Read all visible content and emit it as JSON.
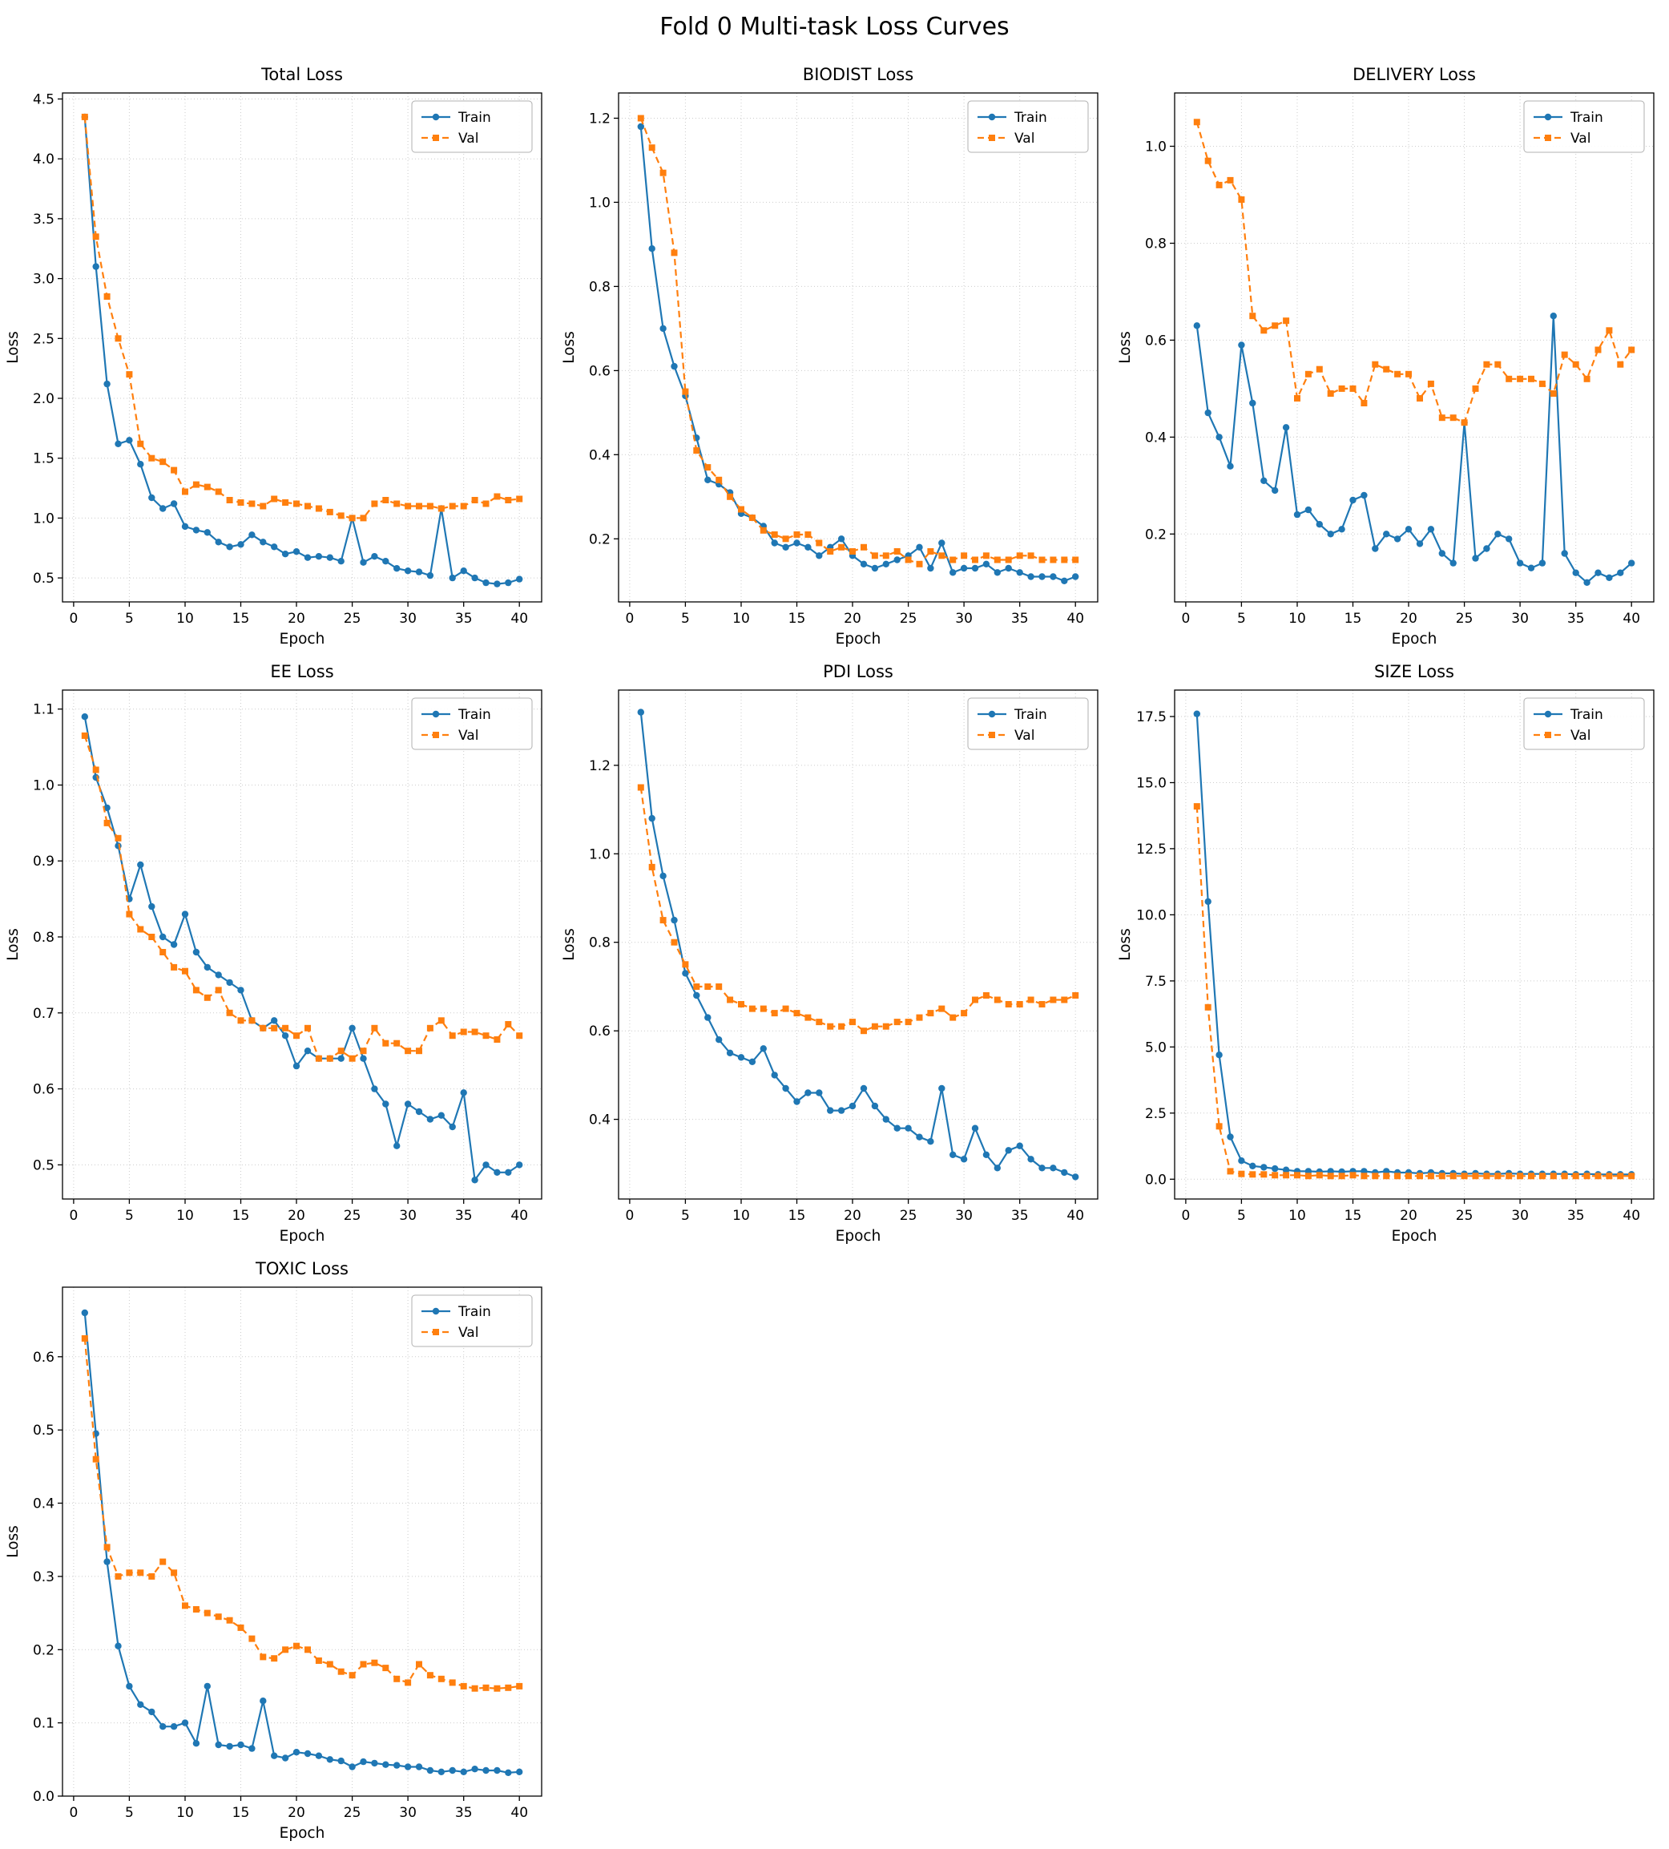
{
  "figure": {
    "title": "Fold 0 Multi-task Loss Curves"
  },
  "legend": {
    "train": "Train",
    "val": "Val"
  },
  "colors": {
    "train": "#1f77b4",
    "val": "#ff7f0e"
  },
  "axes": {
    "xlabel": "Epoch",
    "ylabel": "Loss",
    "xticks": [
      0,
      5,
      10,
      15,
      20,
      25,
      30,
      35,
      40
    ],
    "xlim": [
      -1,
      42
    ]
  },
  "epochs": [
    1,
    2,
    3,
    4,
    5,
    6,
    7,
    8,
    9,
    10,
    11,
    12,
    13,
    14,
    15,
    16,
    17,
    18,
    19,
    20,
    21,
    22,
    23,
    24,
    25,
    26,
    27,
    28,
    29,
    30,
    31,
    32,
    33,
    34,
    35,
    36,
    37,
    38,
    39,
    40
  ],
  "chart_data": [
    {
      "type": "line",
      "title": "Total Loss",
      "xlabel": "Epoch",
      "ylabel": "Loss",
      "ylim": [
        0.3,
        4.55
      ],
      "yticks": [
        0.5,
        1.0,
        1.5,
        2.0,
        2.5,
        3.0,
        3.5,
        4.0,
        4.5
      ],
      "series": [
        {
          "name": "Train",
          "values": [
            4.35,
            3.1,
            2.12,
            1.62,
            1.65,
            1.45,
            1.17,
            1.08,
            1.12,
            0.93,
            0.9,
            0.88,
            0.8,
            0.76,
            0.78,
            0.86,
            0.8,
            0.76,
            0.7,
            0.72,
            0.67,
            0.68,
            0.67,
            0.64,
            1.0,
            0.63,
            0.68,
            0.64,
            0.58,
            0.56,
            0.55,
            0.52,
            1.08,
            0.5,
            0.56,
            0.5,
            0.46,
            0.45,
            0.46,
            0.49
          ]
        },
        {
          "name": "Val",
          "values": [
            4.35,
            3.35,
            2.85,
            2.5,
            2.2,
            1.62,
            1.5,
            1.47,
            1.4,
            1.22,
            1.28,
            1.26,
            1.22,
            1.15,
            1.13,
            1.12,
            1.1,
            1.16,
            1.13,
            1.12,
            1.1,
            1.08,
            1.05,
            1.02,
            1.0,
            1.0,
            1.12,
            1.15,
            1.12,
            1.1,
            1.1,
            1.1,
            1.08,
            1.1,
            1.1,
            1.15,
            1.12,
            1.18,
            1.15,
            1.16
          ]
        }
      ]
    },
    {
      "type": "line",
      "title": "BIODIST Loss",
      "xlabel": "Epoch",
      "ylabel": "Loss",
      "ylim": [
        0.05,
        1.26
      ],
      "yticks": [
        0.2,
        0.4,
        0.6,
        0.8,
        1.0,
        1.2
      ],
      "series": [
        {
          "name": "Train",
          "values": [
            1.18,
            0.89,
            0.7,
            0.61,
            0.54,
            0.44,
            0.34,
            0.33,
            0.31,
            0.26,
            0.25,
            0.23,
            0.19,
            0.18,
            0.19,
            0.18,
            0.16,
            0.18,
            0.2,
            0.16,
            0.14,
            0.13,
            0.14,
            0.15,
            0.16,
            0.18,
            0.13,
            0.19,
            0.12,
            0.13,
            0.13,
            0.14,
            0.12,
            0.13,
            0.12,
            0.11,
            0.11,
            0.11,
            0.1,
            0.11
          ]
        },
        {
          "name": "Val",
          "values": [
            1.2,
            1.13,
            1.07,
            0.88,
            0.55,
            0.41,
            0.37,
            0.34,
            0.3,
            0.27,
            0.25,
            0.22,
            0.21,
            0.2,
            0.21,
            0.21,
            0.19,
            0.17,
            0.18,
            0.17,
            0.18,
            0.16,
            0.16,
            0.17,
            0.15,
            0.14,
            0.17,
            0.16,
            0.15,
            0.16,
            0.15,
            0.16,
            0.15,
            0.15,
            0.16,
            0.16,
            0.15,
            0.15,
            0.15,
            0.15
          ]
        }
      ]
    },
    {
      "type": "line",
      "title": "DELIVERY Loss",
      "xlabel": "Epoch",
      "ylabel": "Loss",
      "ylim": [
        0.06,
        1.11
      ],
      "yticks": [
        0.2,
        0.4,
        0.6,
        0.8,
        1.0
      ],
      "series": [
        {
          "name": "Train",
          "values": [
            0.63,
            0.45,
            0.4,
            0.34,
            0.59,
            0.47,
            0.31,
            0.29,
            0.42,
            0.24,
            0.25,
            0.22,
            0.2,
            0.21,
            0.27,
            0.28,
            0.17,
            0.2,
            0.19,
            0.21,
            0.18,
            0.21,
            0.16,
            0.14,
            0.43,
            0.15,
            0.17,
            0.2,
            0.19,
            0.14,
            0.13,
            0.14,
            0.65,
            0.16,
            0.12,
            0.1,
            0.12,
            0.11,
            0.12,
            0.14
          ]
        },
        {
          "name": "Val",
          "values": [
            1.05,
            0.97,
            0.92,
            0.93,
            0.89,
            0.65,
            0.62,
            0.63,
            0.64,
            0.48,
            0.53,
            0.54,
            0.49,
            0.5,
            0.5,
            0.47,
            0.55,
            0.54,
            0.53,
            0.53,
            0.48,
            0.51,
            0.44,
            0.44,
            0.43,
            0.5,
            0.55,
            0.55,
            0.52,
            0.52,
            0.52,
            0.51,
            0.49,
            0.57,
            0.55,
            0.52,
            0.58,
            0.62,
            0.55,
            0.58
          ]
        }
      ]
    },
    {
      "type": "line",
      "title": "EE Loss",
      "xlabel": "Epoch",
      "ylabel": "Loss",
      "ylim": [
        0.455,
        1.125
      ],
      "yticks": [
        0.5,
        0.6,
        0.7,
        0.8,
        0.9,
        1.0,
        1.1
      ],
      "series": [
        {
          "name": "Train",
          "values": [
            1.09,
            1.01,
            0.97,
            0.92,
            0.85,
            0.895,
            0.84,
            0.8,
            0.79,
            0.83,
            0.78,
            0.76,
            0.75,
            0.74,
            0.73,
            0.69,
            0.68,
            0.69,
            0.67,
            0.63,
            0.65,
            0.64,
            0.64,
            0.64,
            0.68,
            0.64,
            0.6,
            0.58,
            0.525,
            0.58,
            0.57,
            0.56,
            0.565,
            0.55,
            0.595,
            0.48,
            0.5,
            0.49,
            0.49,
            0.5
          ]
        },
        {
          "name": "Val",
          "values": [
            1.065,
            1.02,
            0.95,
            0.93,
            0.83,
            0.81,
            0.8,
            0.78,
            0.76,
            0.755,
            0.73,
            0.72,
            0.73,
            0.7,
            0.69,
            0.69,
            0.68,
            0.68,
            0.68,
            0.67,
            0.68,
            0.64,
            0.64,
            0.65,
            0.64,
            0.65,
            0.68,
            0.66,
            0.66,
            0.65,
            0.65,
            0.68,
            0.69,
            0.67,
            0.675,
            0.675,
            0.67,
            0.665,
            0.685,
            0.67
          ]
        }
      ]
    },
    {
      "type": "line",
      "title": "PDI Loss",
      "xlabel": "Epoch",
      "ylabel": "Loss",
      "ylim": [
        0.22,
        1.37
      ],
      "yticks": [
        0.4,
        0.6,
        0.8,
        1.0,
        1.2
      ],
      "series": [
        {
          "name": "Train",
          "values": [
            1.32,
            1.08,
            0.95,
            0.85,
            0.73,
            0.68,
            0.63,
            0.58,
            0.55,
            0.54,
            0.53,
            0.56,
            0.5,
            0.47,
            0.44,
            0.46,
            0.46,
            0.42,
            0.42,
            0.43,
            0.47,
            0.43,
            0.4,
            0.38,
            0.38,
            0.36,
            0.35,
            0.47,
            0.32,
            0.31,
            0.38,
            0.32,
            0.29,
            0.33,
            0.34,
            0.31,
            0.29,
            0.29,
            0.28,
            0.27
          ]
        },
        {
          "name": "Val",
          "values": [
            1.15,
            0.97,
            0.85,
            0.8,
            0.75,
            0.7,
            0.7,
            0.7,
            0.67,
            0.66,
            0.65,
            0.65,
            0.64,
            0.65,
            0.64,
            0.63,
            0.62,
            0.61,
            0.61,
            0.62,
            0.6,
            0.61,
            0.61,
            0.62,
            0.62,
            0.63,
            0.64,
            0.65,
            0.63,
            0.64,
            0.67,
            0.68,
            0.67,
            0.66,
            0.66,
            0.67,
            0.66,
            0.67,
            0.67,
            0.68
          ]
        }
      ]
    },
    {
      "type": "line",
      "title": "SIZE Loss",
      "xlabel": "Epoch",
      "ylabel": "Loss",
      "ylim": [
        -0.75,
        18.5
      ],
      "yticks": [
        0.0,
        2.5,
        5.0,
        7.5,
        10.0,
        12.5,
        15.0,
        17.5
      ],
      "series": [
        {
          "name": "Train",
          "values": [
            17.6,
            10.5,
            4.7,
            1.6,
            0.7,
            0.5,
            0.45,
            0.4,
            0.35,
            0.3,
            0.3,
            0.28,
            0.3,
            0.28,
            0.3,
            0.3,
            0.25,
            0.3,
            0.25,
            0.25,
            0.22,
            0.25,
            0.22,
            0.22,
            0.2,
            0.22,
            0.2,
            0.2,
            0.22,
            0.2,
            0.2,
            0.2,
            0.2,
            0.2,
            0.18,
            0.2,
            0.18,
            0.18,
            0.18,
            0.18
          ]
        },
        {
          "name": "Val",
          "values": [
            14.1,
            6.5,
            2.0,
            0.3,
            0.2,
            0.18,
            0.18,
            0.15,
            0.15,
            0.15,
            0.12,
            0.15,
            0.12,
            0.12,
            0.15,
            0.12,
            0.12,
            0.12,
            0.12,
            0.12,
            0.12,
            0.12,
            0.12,
            0.12,
            0.12,
            0.12,
            0.12,
            0.12,
            0.12,
            0.12,
            0.12,
            0.12,
            0.12,
            0.12,
            0.12,
            0.12,
            0.12,
            0.12,
            0.12,
            0.12
          ]
        }
      ]
    },
    {
      "type": "line",
      "title": "TOXIC Loss",
      "xlabel": "Epoch",
      "ylabel": "Loss",
      "ylim": [
        0.0,
        0.695
      ],
      "yticks": [
        0.0,
        0.1,
        0.2,
        0.3,
        0.4,
        0.5,
        0.6
      ],
      "series": [
        {
          "name": "Train",
          "values": [
            0.66,
            0.495,
            0.32,
            0.205,
            0.15,
            0.125,
            0.115,
            0.095,
            0.095,
            0.1,
            0.072,
            0.15,
            0.07,
            0.068,
            0.07,
            0.065,
            0.13,
            0.055,
            0.052,
            0.06,
            0.058,
            0.055,
            0.05,
            0.048,
            0.04,
            0.047,
            0.045,
            0.043,
            0.042,
            0.04,
            0.04,
            0.035,
            0.033,
            0.035,
            0.033,
            0.037,
            0.035,
            0.035,
            0.032,
            0.033
          ]
        },
        {
          "name": "Val",
          "values": [
            0.625,
            0.46,
            0.34,
            0.3,
            0.305,
            0.305,
            0.3,
            0.32,
            0.305,
            0.26,
            0.255,
            0.25,
            0.245,
            0.24,
            0.23,
            0.215,
            0.19,
            0.188,
            0.2,
            0.205,
            0.2,
            0.185,
            0.18,
            0.17,
            0.165,
            0.18,
            0.182,
            0.175,
            0.16,
            0.155,
            0.18,
            0.165,
            0.16,
            0.155,
            0.15,
            0.147,
            0.148,
            0.147,
            0.148,
            0.15
          ]
        }
      ]
    }
  ]
}
